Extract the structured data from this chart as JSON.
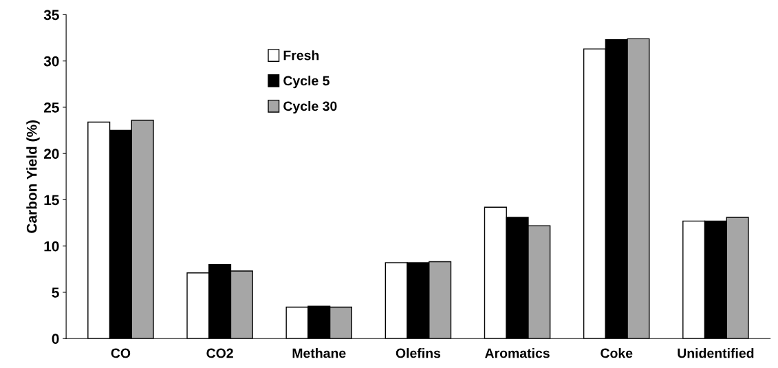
{
  "chart_data": {
    "type": "bar",
    "ylabel": "Carbon Yield (%)",
    "categories": [
      "CO",
      "CO2",
      "Methane",
      "Olefins",
      "Aromatics",
      "Coke",
      "Unidentified"
    ],
    "series": [
      {
        "name": "Fresh",
        "color": "#ffffff",
        "values": [
          23.4,
          7.1,
          3.4,
          8.2,
          14.2,
          31.3,
          12.7
        ]
      },
      {
        "name": "Cycle 5",
        "color": "#000000",
        "values": [
          22.5,
          8.0,
          3.5,
          8.2,
          13.1,
          32.3,
          12.7
        ]
      },
      {
        "name": "Cycle 30",
        "color": "#a6a6a6",
        "values": [
          23.6,
          7.3,
          3.4,
          8.3,
          12.2,
          32.4,
          13.1
        ]
      }
    ],
    "ylim": [
      0,
      35
    ],
    "yticks": [
      0,
      5,
      10,
      15,
      20,
      25,
      30,
      35
    ],
    "grid": false,
    "legend": "top left"
  }
}
